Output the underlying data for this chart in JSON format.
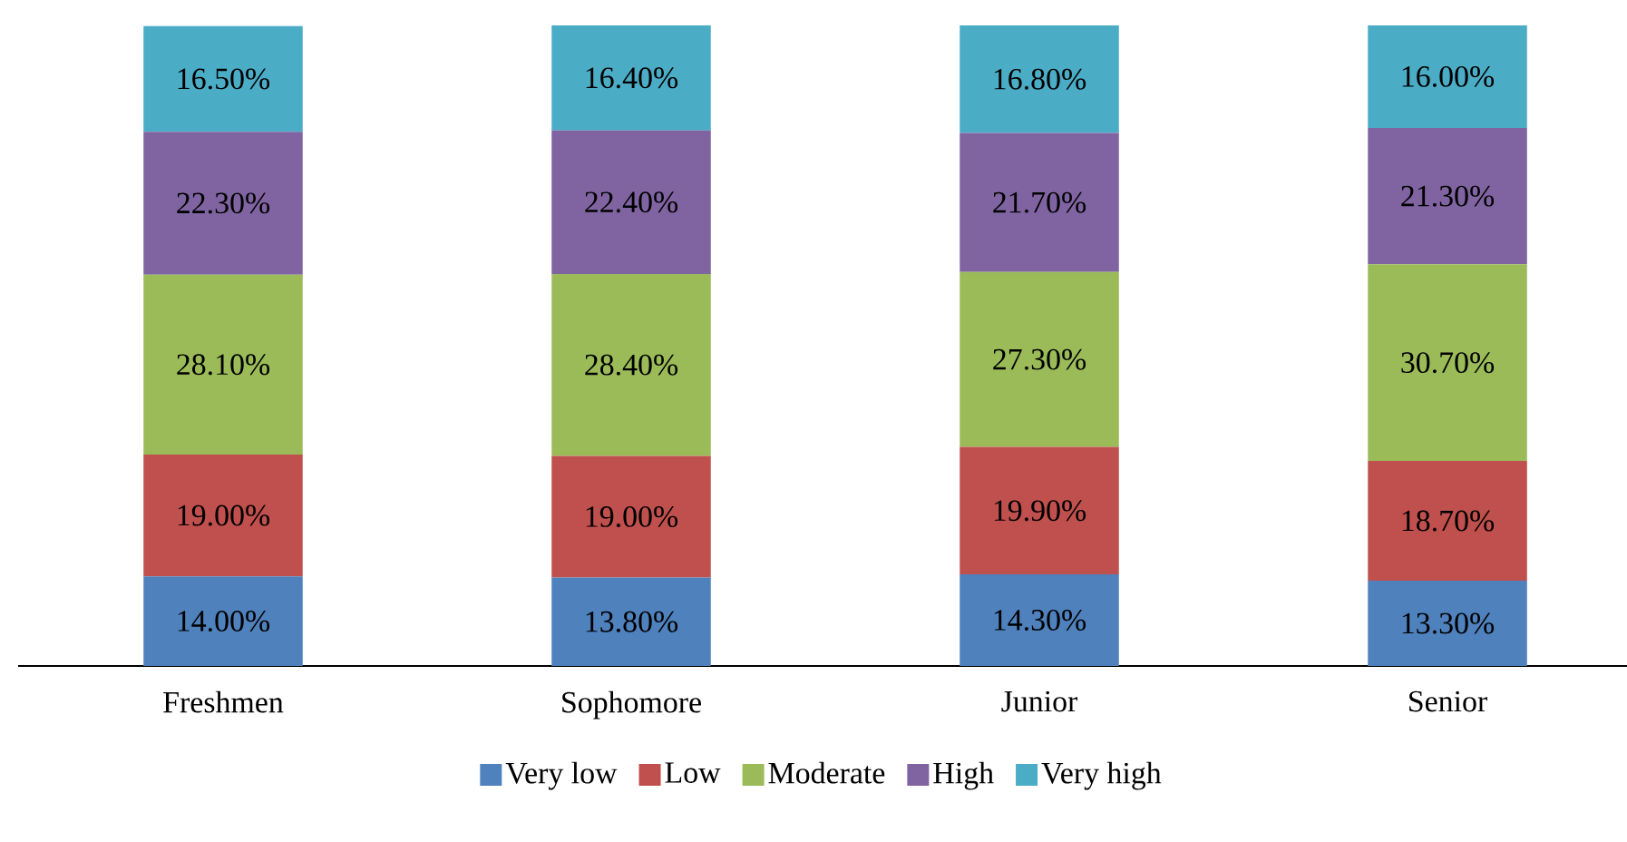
{
  "chart_data": {
    "type": "bar",
    "stacked": true,
    "categories": [
      "Freshmen",
      "Sophomore",
      "Junior",
      "Senior"
    ],
    "legend": "bottom",
    "grid": false,
    "series": [
      {
        "name": "Very low",
        "color": "#4f81bd",
        "values": [
          14.0,
          13.8,
          14.3,
          13.3
        ],
        "value_labels": [
          "14.00%",
          "13.80%",
          "14.30%",
          "13.30%"
        ]
      },
      {
        "name": "Low",
        "color": "#c0504d",
        "values": [
          19.0,
          19.0,
          19.9,
          18.7
        ],
        "value_labels": [
          "19.00%",
          "19.00%",
          "19.90%",
          "18.70%"
        ]
      },
      {
        "name": "Moderate",
        "color": "#9bbb59",
        "values": [
          28.1,
          28.4,
          27.3,
          30.7
        ],
        "value_labels": [
          "28.10%",
          "28.40%",
          "27.30%",
          "30.70%"
        ]
      },
      {
        "name": "High",
        "color": "#8064a2",
        "values": [
          22.3,
          22.4,
          21.7,
          21.3
        ],
        "value_labels": [
          "22.30%",
          "22.40%",
          "21.70%",
          "21.30%"
        ]
      },
      {
        "name": "Very high",
        "color": "#4bacc6",
        "values": [
          16.5,
          16.4,
          16.8,
          16.0
        ],
        "value_labels": [
          "16.50%",
          "16.40%",
          "16.80%",
          "16.00%"
        ]
      }
    ]
  }
}
